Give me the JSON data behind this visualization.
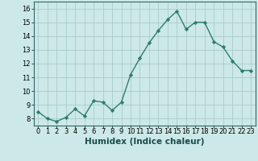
{
  "x": [
    0,
    1,
    2,
    3,
    4,
    5,
    6,
    7,
    8,
    9,
    10,
    11,
    12,
    13,
    14,
    15,
    16,
    17,
    18,
    19,
    20,
    21,
    22,
    23
  ],
  "y": [
    8.5,
    8.0,
    7.8,
    8.1,
    8.7,
    8.2,
    9.3,
    9.2,
    8.6,
    9.2,
    11.2,
    12.4,
    13.5,
    14.4,
    15.2,
    15.8,
    14.5,
    15.0,
    15.0,
    13.6,
    13.2,
    12.2,
    11.5,
    11.5
  ],
  "line_color": "#2e7d6e",
  "marker_color": "#2e7d6e",
  "bg_color": "#cce8e8",
  "grid_color": "#aacccc",
  "xlabel": "Humidex (Indice chaleur)",
  "ylim": [
    7.5,
    16.5
  ],
  "xlim": [
    -0.5,
    23.5
  ],
  "yticks": [
    8,
    9,
    10,
    11,
    12,
    13,
    14,
    15,
    16
  ],
  "xticks": [
    0,
    1,
    2,
    3,
    4,
    5,
    6,
    7,
    8,
    9,
    10,
    11,
    12,
    13,
    14,
    15,
    16,
    17,
    18,
    19,
    20,
    21,
    22,
    23
  ],
  "xtick_labels": [
    "0",
    "1",
    "2",
    "3",
    "4",
    "5",
    "6",
    "7",
    "8",
    "9",
    "10",
    "11",
    "12",
    "13",
    "14",
    "15",
    "16",
    "17",
    "18",
    "19",
    "20",
    "21",
    "22",
    "23"
  ],
  "label_fontsize": 7.5,
  "tick_fontsize": 6.0
}
